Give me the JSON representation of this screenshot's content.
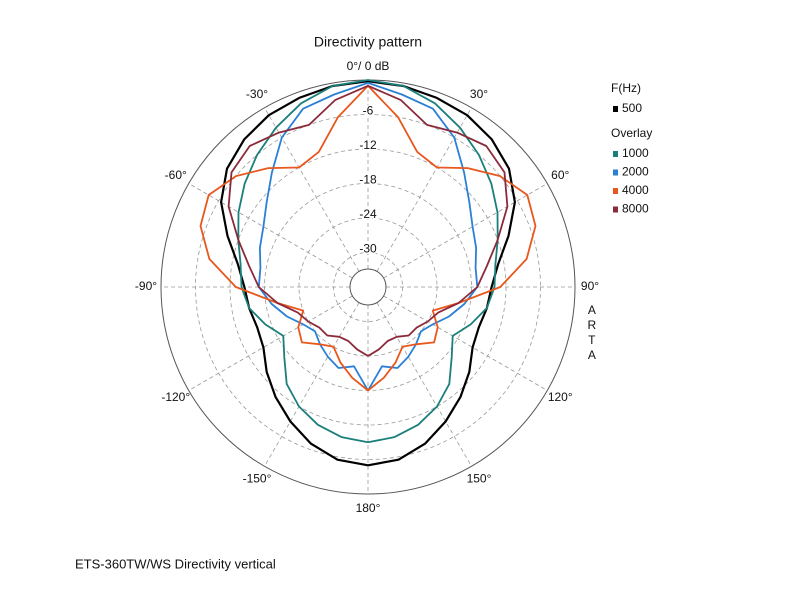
{
  "chart_data": {
    "type": "polar",
    "title": "Directivity pattern",
    "caption": "ETS-360TW/WS  Directivity vertical",
    "side_label": "ARTA",
    "legend_title": "F(Hz)",
    "overlay_label": "Overlay",
    "rlim": [
      -36,
      0
    ],
    "rticks": [
      -6,
      -12,
      -18,
      -24,
      -30
    ],
    "thetaticks": [
      {
        "value": 0,
        "label": "0°/ 0 dB"
      },
      {
        "value": 30,
        "label": "30°"
      },
      {
        "value": 60,
        "label": "60°"
      },
      {
        "value": 90,
        "label": "90°"
      },
      {
        "value": 120,
        "label": "120°"
      },
      {
        "value": 150,
        "label": "150°"
      },
      {
        "value": 180,
        "label": "180°"
      },
      {
        "value": -150,
        "label": "-150°"
      },
      {
        "value": -120,
        "label": "-120°"
      },
      {
        "value": -90,
        "label": "-90°"
      },
      {
        "value": -60,
        "label": "-60°"
      },
      {
        "value": -30,
        "label": "-30°"
      }
    ],
    "x": [
      -180,
      -170,
      -160,
      -150,
      -140,
      -130,
      -120,
      -110,
      -100,
      -90,
      -80,
      -70,
      -60,
      -50,
      -40,
      -30,
      -20,
      -10,
      0,
      10,
      20,
      30,
      40,
      50,
      60,
      70,
      80,
      90,
      100,
      110,
      120,
      130,
      140,
      150,
      160,
      170,
      180
    ],
    "series": [
      {
        "name": "500",
        "color": "#000000",
        "values": [
          -5,
          -5.5,
          -7,
          -9,
          -11,
          -13,
          -15,
          -15.5,
          -15,
          -14.5,
          -13,
          -10,
          -6.5,
          -4,
          -2.5,
          -1.5,
          -1,
          -0.5,
          -0.2,
          -0.5,
          -1,
          -1.5,
          -2.5,
          -4,
          -6.5,
          -10,
          -13,
          -14.5,
          -15,
          -15.5,
          -15,
          -13,
          -11,
          -9,
          -7,
          -5.5,
          -5
        ]
      },
      {
        "name": "1000",
        "color": "#1a7f7a",
        "values": [
          -9,
          -9.5,
          -10.5,
          -12,
          -14,
          -17,
          -19,
          -17,
          -15,
          -14,
          -13.5,
          -12,
          -10,
          -8,
          -6,
          -4,
          -2,
          -0.5,
          0,
          -0.5,
          -2,
          -4,
          -6,
          -8,
          -10,
          -12,
          -13.5,
          -14,
          -15,
          -17,
          -19,
          -17,
          -14,
          -12,
          -10.5,
          -9.5,
          -9
        ]
      },
      {
        "name": "2000",
        "color": "#2a80d6",
        "values": [
          -18,
          -22,
          -21,
          -22,
          -23,
          -24,
          -23,
          -21,
          -19,
          -17,
          -17,
          -16,
          -15,
          -13,
          -10,
          -6,
          -3,
          -2,
          -0.5,
          -2,
          -3,
          -6,
          -10,
          -13,
          -15,
          -16,
          -17,
          -17,
          -19,
          -21,
          -23,
          -24,
          -23,
          -22,
          -21,
          -22,
          -18
        ]
      },
      {
        "name": "4000",
        "color": "#e8571e",
        "values": [
          -18,
          -20,
          -22,
          -24,
          -23,
          -21,
          -22,
          -24,
          -20,
          -13,
          -8,
          -5,
          -4,
          -6,
          -9,
          -12,
          -11,
          -6,
          -1,
          -6,
          -11,
          -12,
          -9,
          -6,
          -4,
          -5,
          -8,
          -13,
          -20,
          -24,
          -22,
          -21,
          -23,
          -24,
          -22,
          -20,
          -18
        ]
      },
      {
        "name": "8000",
        "color": "#8b2a3a",
        "values": [
          -24,
          -25,
          -26,
          -26,
          -25,
          -25,
          -24,
          -23,
          -20,
          -17,
          -15,
          -12,
          -8,
          -5,
          -4,
          -5,
          -6,
          -3,
          -1,
          -3,
          -6,
          -5,
          -4,
          -5,
          -8,
          -12,
          -15,
          -17,
          -20,
          -23,
          -24,
          -25,
          -25,
          -26,
          -26,
          -25,
          -24
        ]
      }
    ]
  }
}
